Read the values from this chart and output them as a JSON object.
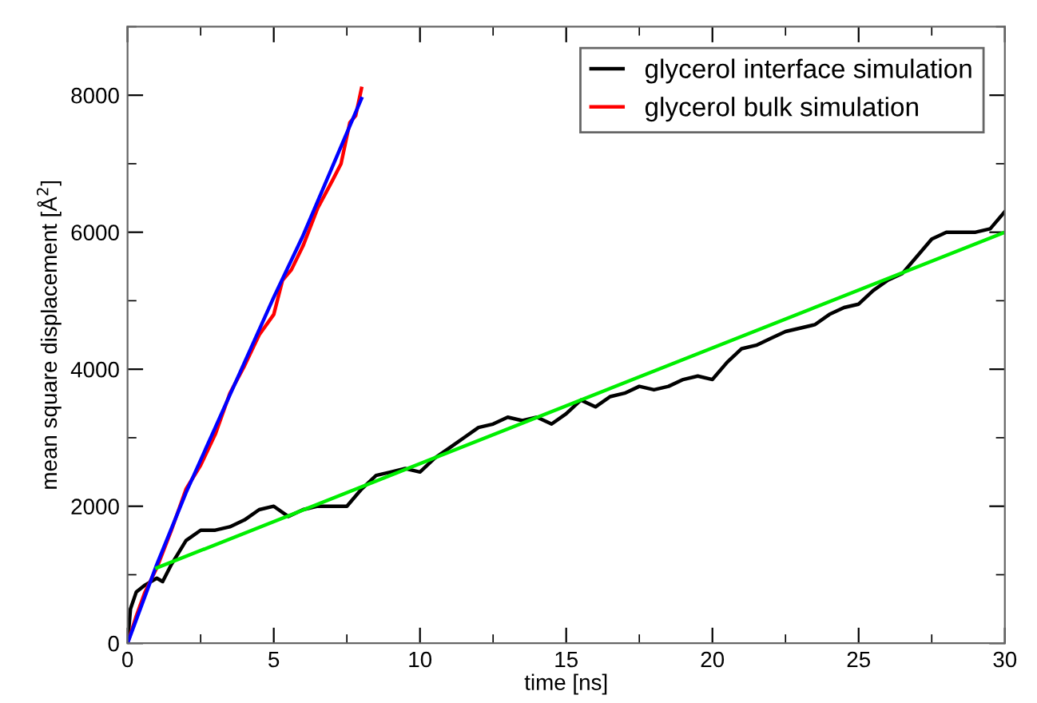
{
  "chart_data": {
    "type": "line",
    "xlabel": "time [ns]",
    "ylabel": "mean square displacement [Å$^{2}$]",
    "xlim": [
      0,
      30
    ],
    "xticks": [
      0,
      5,
      10,
      15,
      20,
      25,
      30
    ],
    "ylim": [
      0,
      9000
    ],
    "yticks": [
      0,
      2000,
      4000,
      6000,
      8000
    ],
    "grid": false,
    "legend": "top right",
    "marker": "none",
    "line_style": "solid",
    "series": [
      {
        "name": "glycerol interface simulation",
        "color": "#000000",
        "x": [
          0,
          0.1,
          0.3,
          0.6,
          1,
          1.2,
          1.5,
          2,
          2.5,
          3,
          3.5,
          4,
          4.5,
          5,
          5.5,
          6,
          6.5,
          7,
          7.5,
          8,
          8.5,
          9,
          9.5,
          10,
          10.5,
          11,
          11.5,
          12,
          12.5,
          13,
          13.5,
          14,
          14.5,
          15,
          15.5,
          16,
          16.5,
          17,
          17.5,
          18,
          18.5,
          19,
          19.5,
          20,
          20.5,
          21,
          21.5,
          22,
          22.5,
          23,
          23.5,
          24,
          24.5,
          25,
          25.5,
          26,
          26.5,
          27,
          27.5,
          28,
          28.5,
          29,
          29.5,
          30
        ],
        "values": [
          0,
          500,
          750,
          850,
          950,
          900,
          1150,
          1500,
          1650,
          1650,
          1700,
          1800,
          1950,
          2000,
          1850,
          1950,
          2000,
          2000,
          2000,
          2250,
          2450,
          2500,
          2550,
          2500,
          2700,
          2850,
          3000,
          3150,
          3200,
          3300,
          3250,
          3300,
          3200,
          3350,
          3550,
          3450,
          3600,
          3650,
          3750,
          3700,
          3750,
          3850,
          3900,
          3850,
          4100,
          4300,
          4350,
          4450,
          4550,
          4600,
          4650,
          4800,
          4900,
          4950,
          5150,
          5300,
          5400,
          5650,
          5900,
          6000,
          6000,
          6000,
          6050,
          6300
        ]
      },
      {
        "name": "glycerol bulk simulation",
        "color": "#ff0000",
        "x": [
          0,
          0.3,
          0.6,
          1,
          1.5,
          2,
          2.5,
          3,
          3.5,
          4,
          4.5,
          5,
          5.3,
          5.6,
          6,
          6.5,
          7,
          7.3,
          7.6,
          7.8,
          8
        ],
        "values": [
          0,
          400,
          750,
          1100,
          1650,
          2250,
          2600,
          3050,
          3650,
          4050,
          4500,
          4800,
          5300,
          5450,
          5800,
          6350,
          6750,
          7000,
          7600,
          7700,
          8100
        ]
      },
      {
        "color": "#0000ff",
        "x": [
          0,
          1,
          2,
          3,
          4,
          5,
          6,
          7,
          8
        ],
        "values": [
          0,
          1150,
          2200,
          3150,
          4100,
          5050,
          5950,
          6950,
          7950
        ]
      },
      {
        "color": "#00ee00",
        "x": [
          1,
          30
        ],
        "values": [
          1100,
          6000
        ]
      }
    ]
  }
}
